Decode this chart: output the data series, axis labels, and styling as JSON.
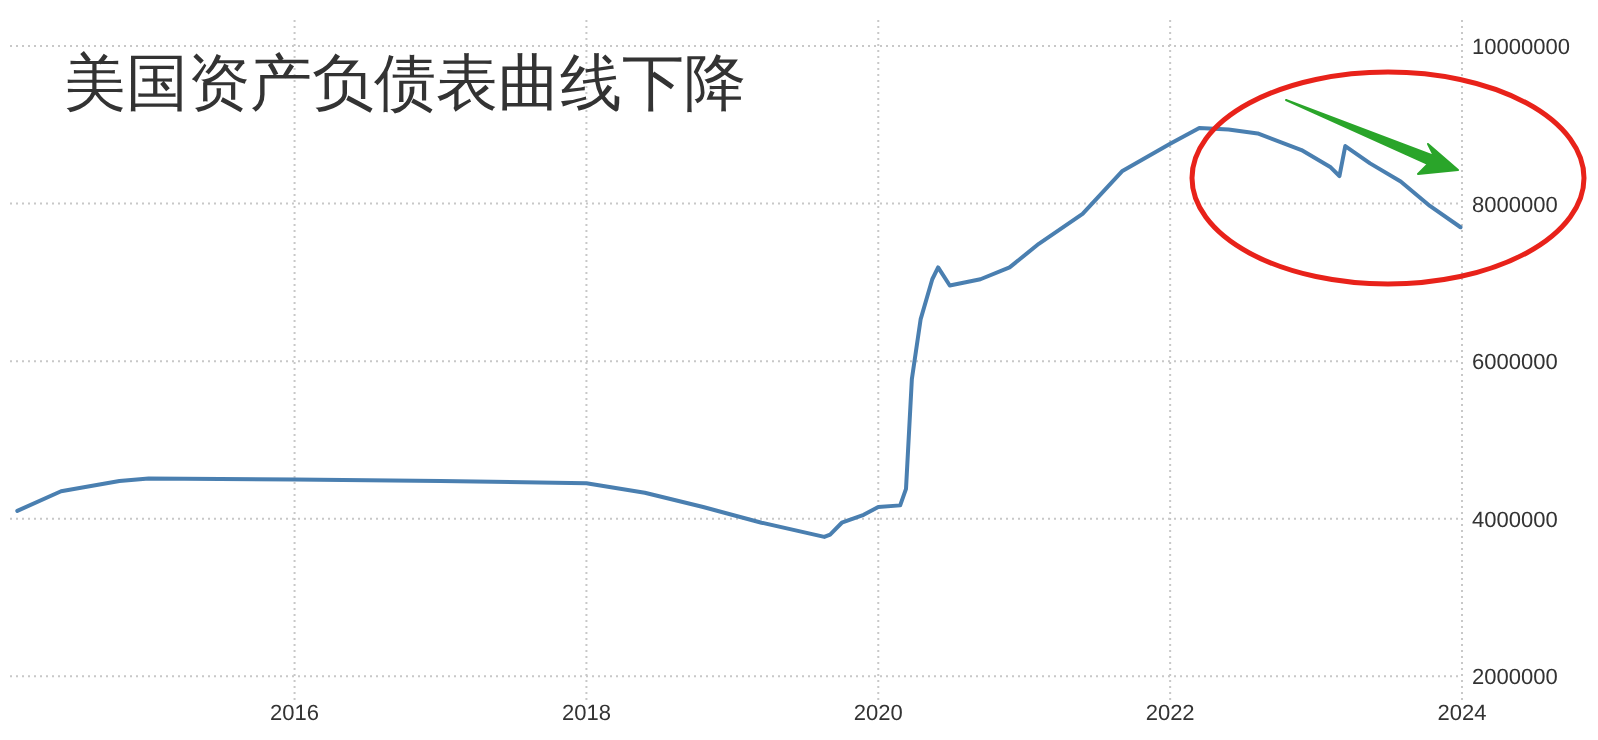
{
  "chart_data": {
    "type": "line",
    "title": "美国资产负债表曲线下降",
    "x": [
      2014.1,
      2014.4,
      2014.8,
      2015.0,
      2016.0,
      2017.0,
      2018.0,
      2018.4,
      2018.8,
      2019.2,
      2019.63,
      2019.67,
      2019.75,
      2019.9,
      2020.0,
      2020.15,
      2020.19,
      2020.23,
      2020.29,
      2020.37,
      2020.41,
      2020.49,
      2020.7,
      2020.9,
      2021.1,
      2021.4,
      2021.67,
      2022.0,
      2022.2,
      2022.4,
      2022.6,
      2022.9,
      2023.1,
      2023.16,
      2023.2,
      2023.37,
      2023.58,
      2023.78,
      2023.99
    ],
    "series": [
      {
        "color": "#4a7fb0",
        "values": [
          4100000,
          4350000,
          4480000,
          4510000,
          4500000,
          4480000,
          4450000,
          4330000,
          4150000,
          3950000,
          3770000,
          3800000,
          3950000,
          4050000,
          4150000,
          4170000,
          4380000,
          5770000,
          6530000,
          7040000,
          7190000,
          6960000,
          7040000,
          7190000,
          7490000,
          7870000,
          8410000,
          8760000,
          8960000,
          8940000,
          8890000,
          8680000,
          8460000,
          8350000,
          8730000,
          8510000,
          8280000,
          7970000,
          7700000
        ]
      }
    ],
    "xlim": [
      2014.05,
      2024
    ],
    "ylim": [
      1700000,
      10330000
    ],
    "xticks": [
      2016,
      2018,
      2020,
      2022,
      2024
    ],
    "yticks": [
      2000000,
      4000000,
      6000000,
      8000000,
      10000000
    ],
    "grid": true,
    "marker": "none",
    "line_style": "solid"
  }
}
